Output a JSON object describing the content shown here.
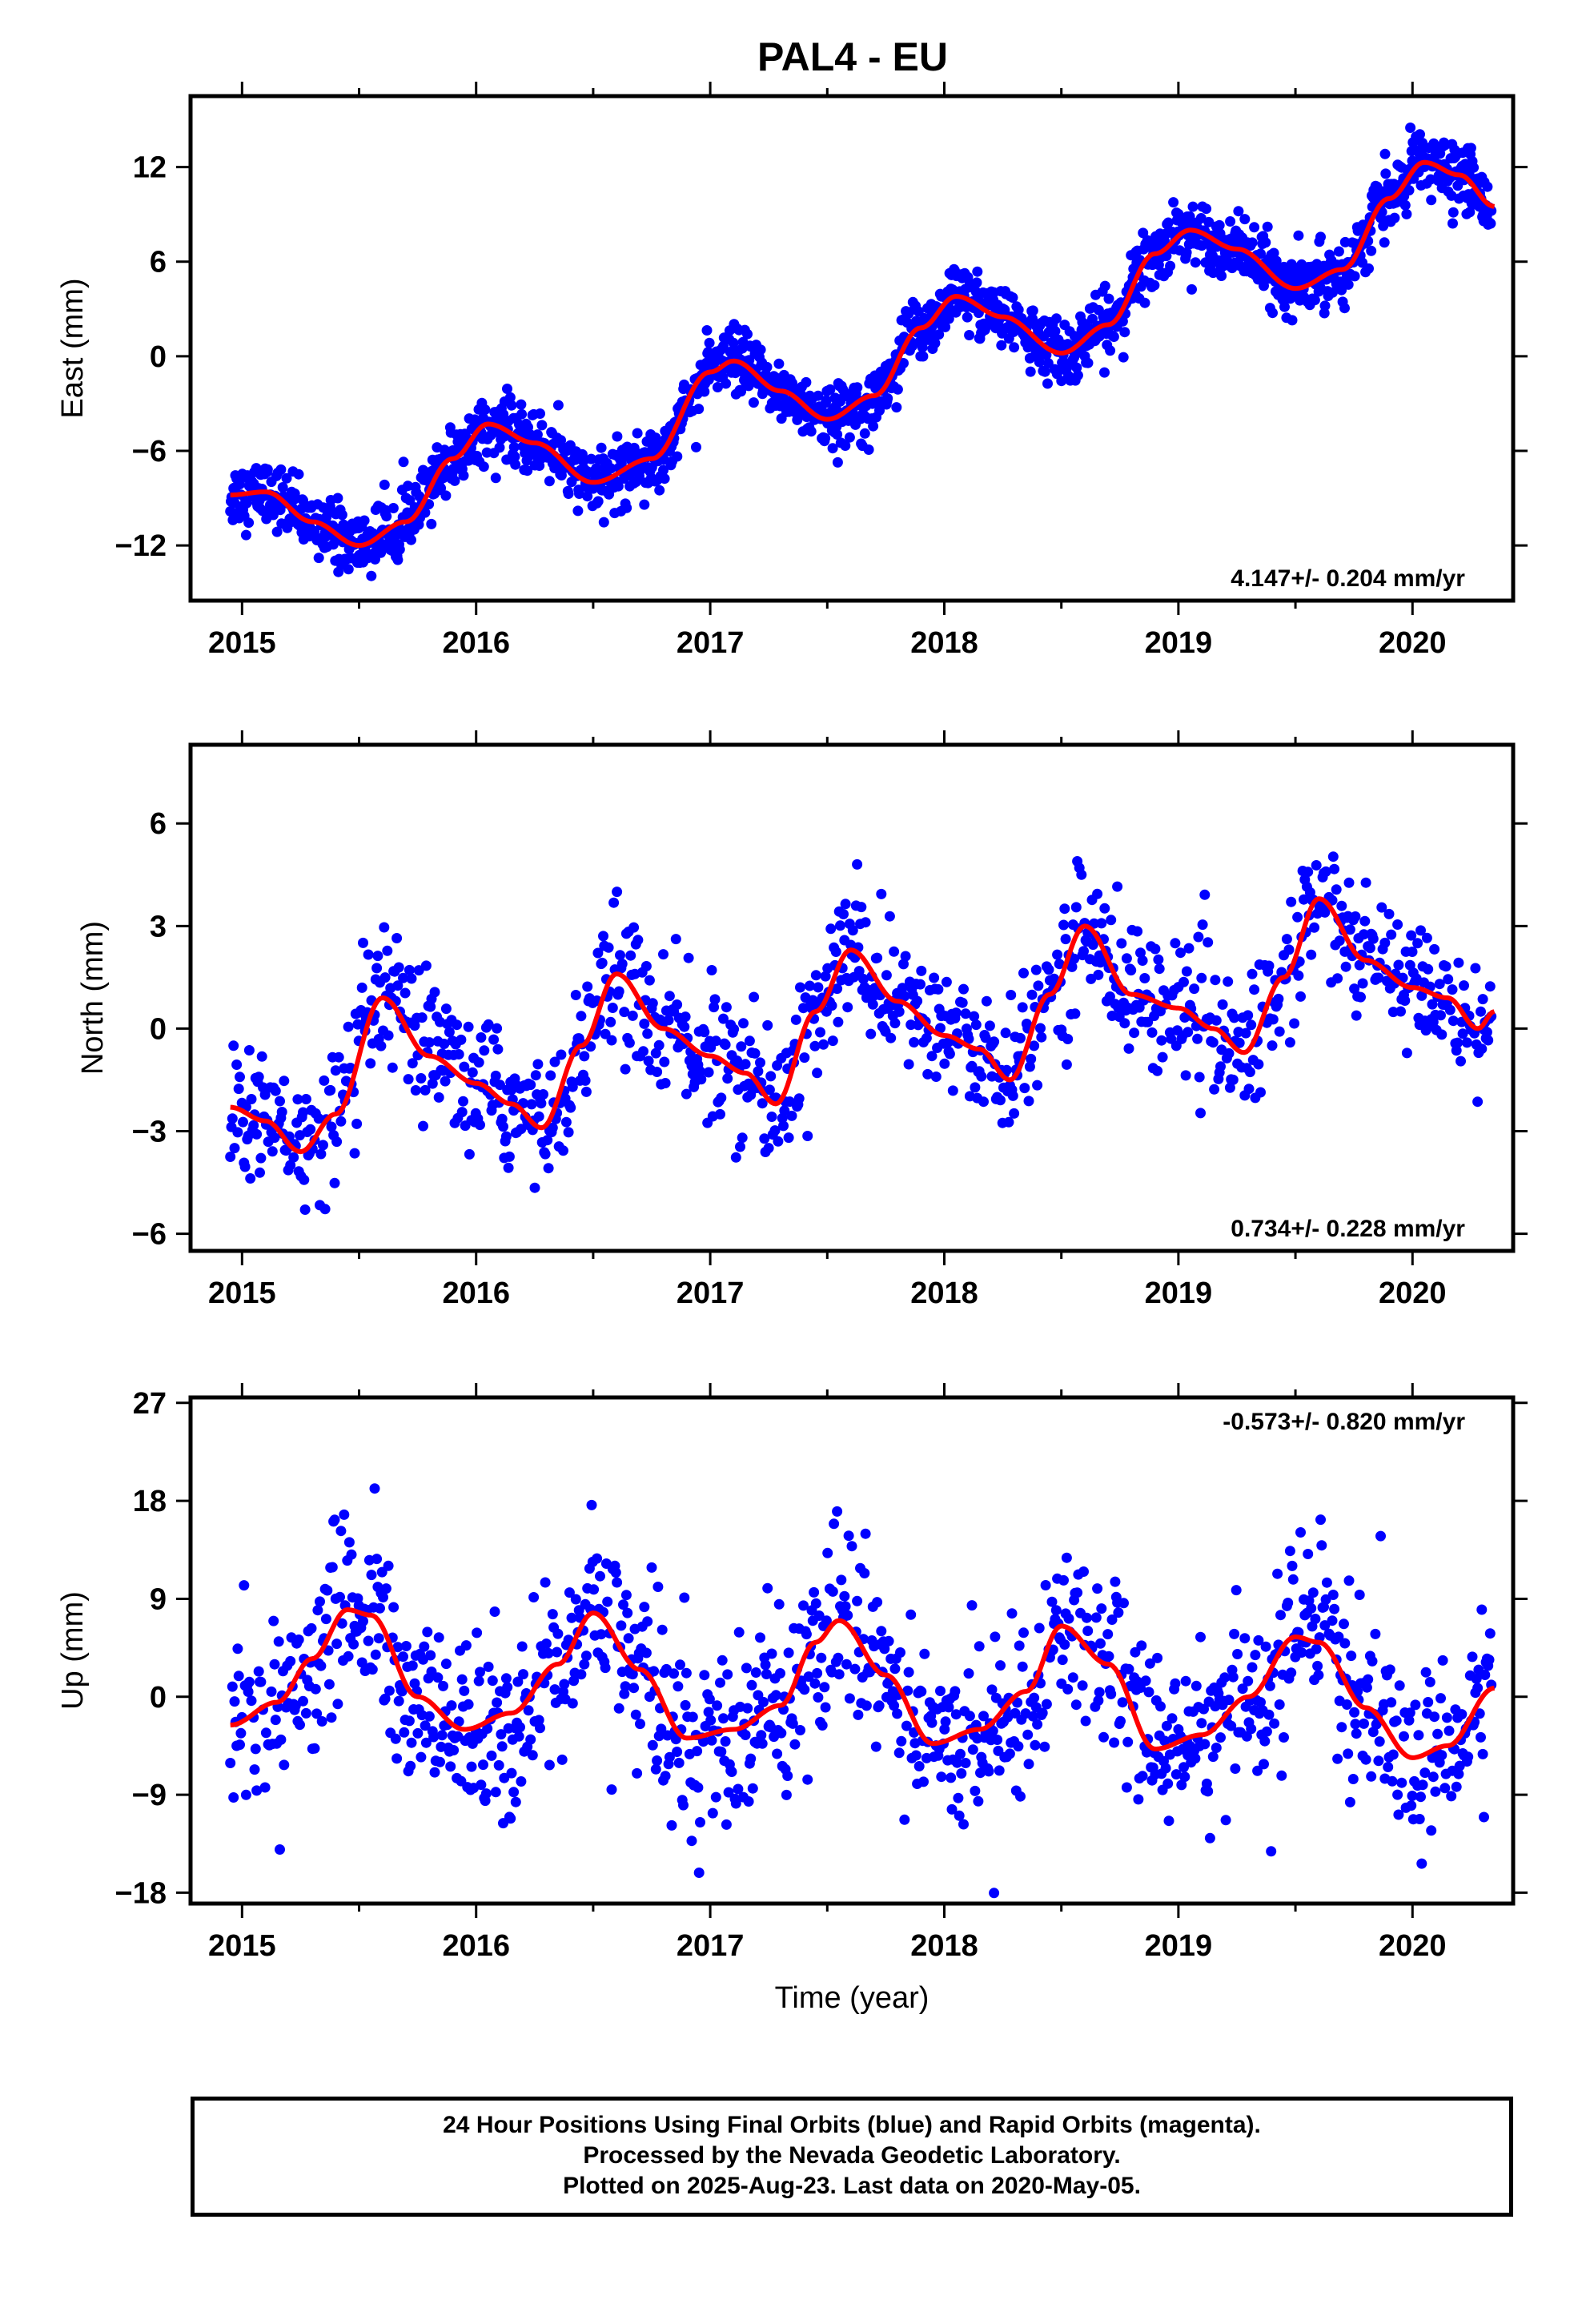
{
  "title": "PAL4 - EU",
  "chart_data": [
    {
      "type": "scatter",
      "ylabel": "East (mm)",
      "xlim": [
        2014.78,
        2020.43
      ],
      "ylim": [
        -15.5,
        16.5
      ],
      "yticks": [
        12,
        6,
        0,
        -6,
        -12
      ],
      "xticks": [
        2015,
        2016,
        2017,
        2018,
        2019,
        2020
      ],
      "rate_text": "4.147+/- 0.204 mm/yr",
      "rate_position": "bottom-right",
      "series": [
        {
          "color": "#0000ff",
          "marker": "dot",
          "noise": 1.0
        },
        {
          "color": "#ff0000",
          "style": "line",
          "x": [
            2014.95,
            2015.1,
            2015.3,
            2015.5,
            2015.7,
            2015.9,
            2016.05,
            2016.25,
            2016.5,
            2016.75,
            2017.0,
            2017.1,
            2017.3,
            2017.5,
            2017.7,
            2017.9,
            2018.05,
            2018.25,
            2018.5,
            2018.7,
            2018.9,
            2019.05,
            2019.25,
            2019.5,
            2019.7,
            2019.9,
            2020.05,
            2020.2,
            2020.35
          ],
          "y": [
            -8.8,
            -8.6,
            -10.5,
            -12.0,
            -10.5,
            -6.5,
            -4.3,
            -5.5,
            -8.0,
            -6.5,
            -1.0,
            -0.3,
            -2.2,
            -4.0,
            -2.5,
            1.8,
            3.8,
            2.5,
            0.2,
            2.0,
            6.5,
            8.0,
            6.8,
            4.3,
            5.5,
            10.0,
            12.3,
            11.5,
            9.5
          ]
        }
      ]
    },
    {
      "type": "scatter",
      "ylabel": "North (mm)",
      "xlim": [
        2014.78,
        2020.43
      ],
      "ylim": [
        -6.5,
        8.3
      ],
      "yticks": [
        6,
        3,
        0,
        -3,
        -6
      ],
      "xticks": [
        2015,
        2016,
        2017,
        2018,
        2019,
        2020
      ],
      "rate_text": "0.734+/- 0.228 mm/yr",
      "rate_position": "bottom-right",
      "series": [
        {
          "color": "#0000ff",
          "marker": "dot",
          "noise": 1.0
        },
        {
          "color": "#ff0000",
          "style": "line",
          "x": [
            2014.95,
            2015.1,
            2015.25,
            2015.4,
            2015.6,
            2015.8,
            2016.0,
            2016.15,
            2016.28,
            2016.45,
            2016.6,
            2016.8,
            2017.0,
            2017.15,
            2017.28,
            2017.45,
            2017.6,
            2017.8,
            2018.0,
            2018.15,
            2018.28,
            2018.45,
            2018.6,
            2018.8,
            2019.0,
            2019.15,
            2019.28,
            2019.45,
            2019.6,
            2019.8,
            2020.0,
            2020.15,
            2020.28,
            2020.35
          ],
          "y": [
            -2.3,
            -2.7,
            -3.6,
            -2.5,
            0.9,
            -0.8,
            -1.6,
            -2.2,
            -2.9,
            -0.5,
            1.6,
            0.0,
            -0.8,
            -1.3,
            -2.2,
            0.5,
            2.3,
            0.8,
            -0.2,
            -0.6,
            -1.5,
            1.0,
            3.0,
            1.0,
            0.6,
            0.0,
            -0.7,
            1.5,
            3.8,
            2.0,
            1.2,
            0.9,
            0.0,
            0.5
          ]
        }
      ]
    },
    {
      "type": "scatter",
      "ylabel": "Up (mm)",
      "xlabel": "Time (year)",
      "xlim": [
        2014.78,
        2020.43
      ],
      "ylim": [
        -19,
        27.5
      ],
      "yticks": [
        27,
        18,
        9,
        0,
        -9,
        -18
      ],
      "xticks": [
        2015,
        2016,
        2017,
        2018,
        2019,
        2020
      ],
      "rate_text": "-0.573+/- 0.820 mm/yr",
      "rate_position": "top-right",
      "series": [
        {
          "color": "#0000ff",
          "marker": "dot",
          "noise": 4.0
        },
        {
          "color": "#ff0000",
          "style": "line",
          "x": [
            2014.95,
            2015.15,
            2015.3,
            2015.45,
            2015.55,
            2015.75,
            2015.95,
            2016.15,
            2016.35,
            2016.5,
            2016.7,
            2016.9,
            2017.1,
            2017.3,
            2017.45,
            2017.55,
            2017.75,
            2017.95,
            2018.15,
            2018.35,
            2018.5,
            2018.7,
            2018.9,
            2019.1,
            2019.3,
            2019.5,
            2019.6,
            2019.8,
            2020.0,
            2020.15,
            2020.35
          ],
          "y": [
            -2.6,
            -0.5,
            3.5,
            8.0,
            7.5,
            0.0,
            -3.0,
            -1.5,
            3.0,
            7.7,
            2.5,
            -3.8,
            -3.0,
            -0.8,
            5.0,
            7.0,
            2.0,
            -4.3,
            -3.0,
            0.5,
            6.5,
            3.0,
            -4.8,
            -3.5,
            0.0,
            5.5,
            5.0,
            -1.0,
            -5.6,
            -4.5,
            0.8
          ]
        }
      ]
    }
  ],
  "footer": {
    "line1": "24 Hour Positions Using Final Orbits (blue) and Rapid Orbits (magenta).",
    "line2": "Processed by the Nevada Geodetic Laboratory.",
    "line3": "Plotted on 2025-Aug-23. Last data on 2020-May-05."
  }
}
